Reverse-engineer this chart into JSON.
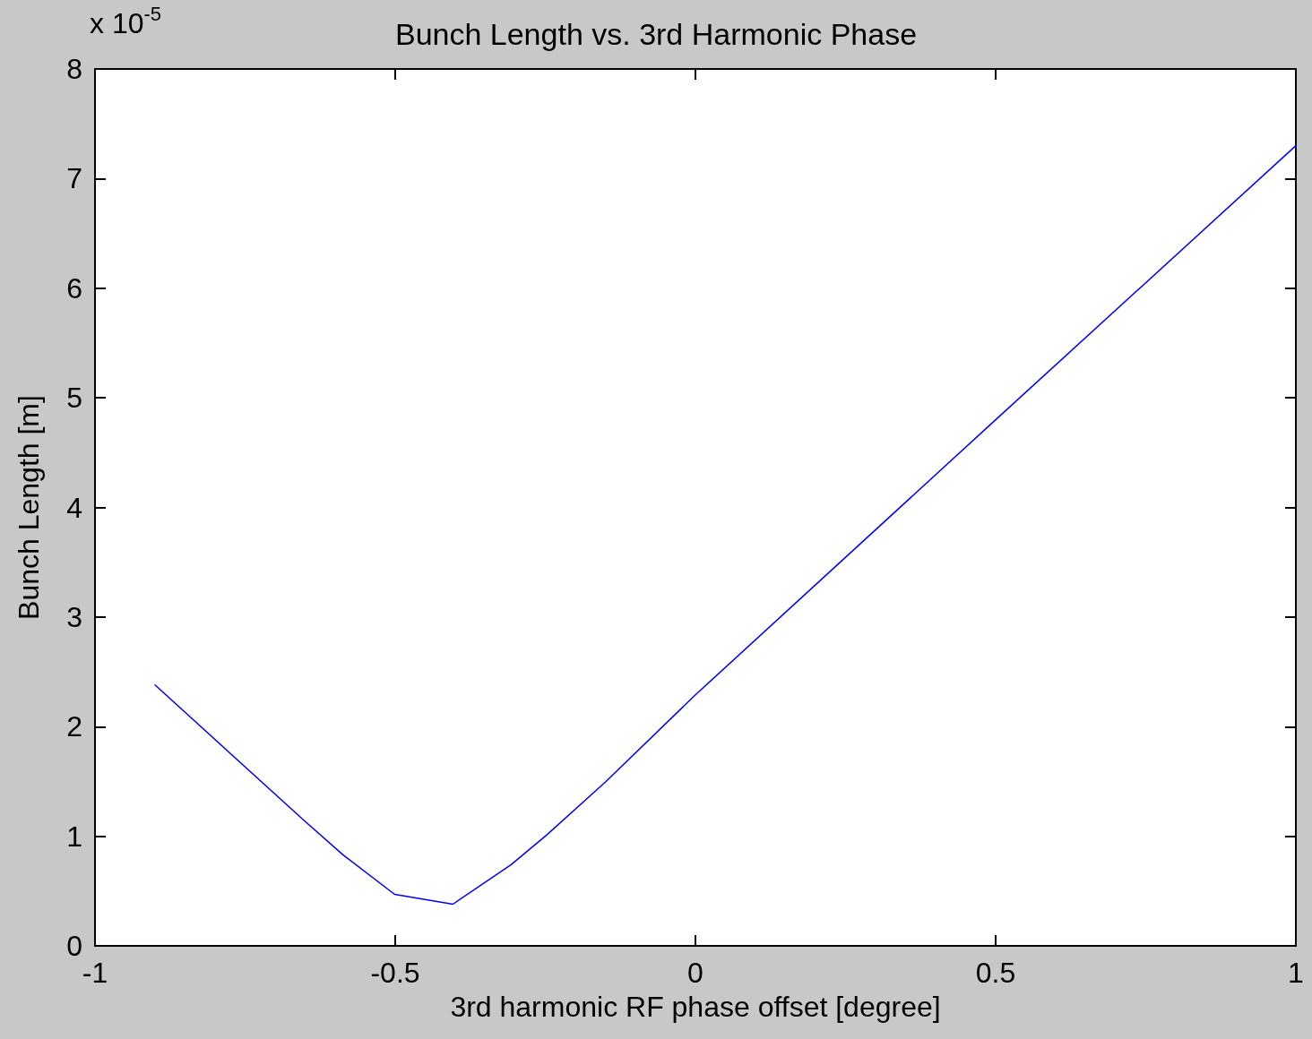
{
  "chart_data": {
    "type": "line",
    "title": "Bunch Length vs. 3rd Harmonic Phase",
    "xlabel": "3rd harmonic RF phase offset [degree]",
    "ylabel": "Bunch Length [m]",
    "annotations": [
      "x 10$^{-5}$"
    ],
    "x": [
      -0.9,
      -0.651,
      -0.587,
      -0.501,
      -0.404,
      -0.307,
      -0.248,
      -0.149,
      0,
      0.5,
      1
    ],
    "series": [
      {
        "color": "#0000ff",
        "values": [
          2.38,
          1.14,
          0.83,
          0.47,
          0.38,
          0.74,
          1.01,
          1.5,
          2.29,
          4.8,
          7.3
        ]
      }
    ],
    "xlim": [
      -1,
      1
    ],
    "xticks": [
      -1,
      -0.5,
      0,
      0.5,
      1
    ],
    "ylim": [
      0,
      8
    ],
    "yticks": [
      0,
      1,
      2,
      3,
      4,
      5,
      6,
      7,
      8
    ],
    "marker": "none",
    "line_style": "solid"
  }
}
